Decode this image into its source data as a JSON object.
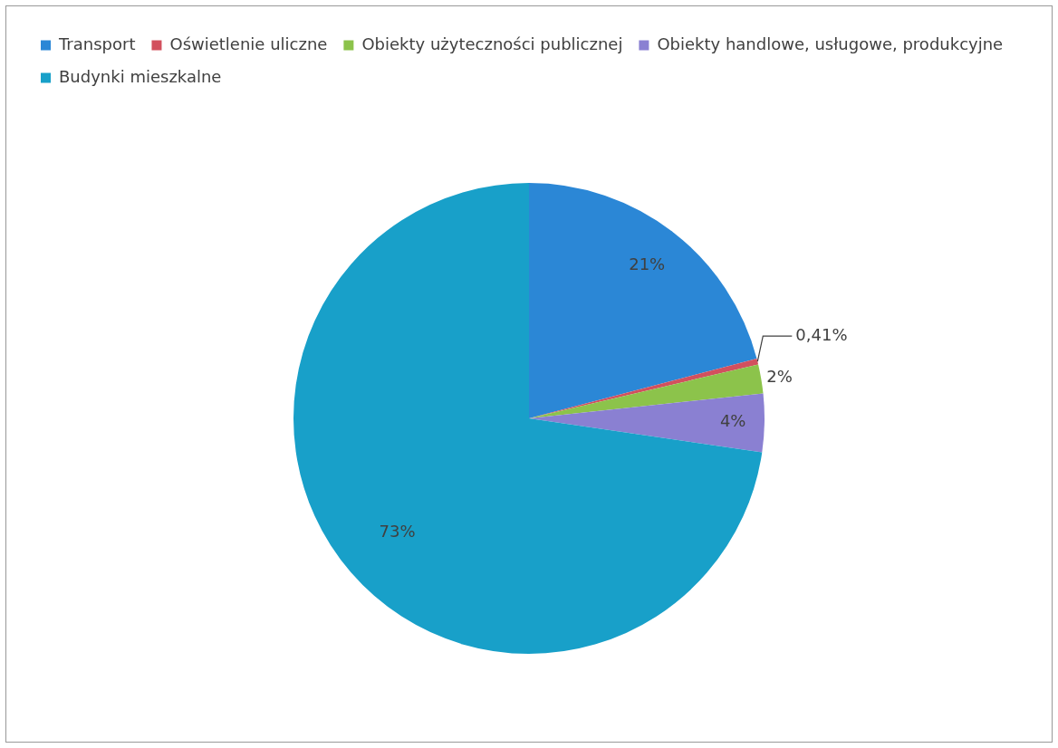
{
  "chart_data": {
    "type": "pie",
    "categories": [
      "Transport",
      "Oświetlenie uliczne",
      "Obiekty użyteczności publicznej",
      "Obiekty handlowe, usługowe, produkcyjne",
      "Budynki mieszkalne"
    ],
    "values": [
      21,
      0.41,
      2,
      4,
      73
    ],
    "colors": [
      "#2b87d6",
      "#d2505e",
      "#8cc34b",
      "#8a80d2",
      "#18a0c9"
    ],
    "value_labels": [
      "21%",
      "0,41%",
      "2%",
      "4%",
      "73%"
    ],
    "legend": "top"
  }
}
